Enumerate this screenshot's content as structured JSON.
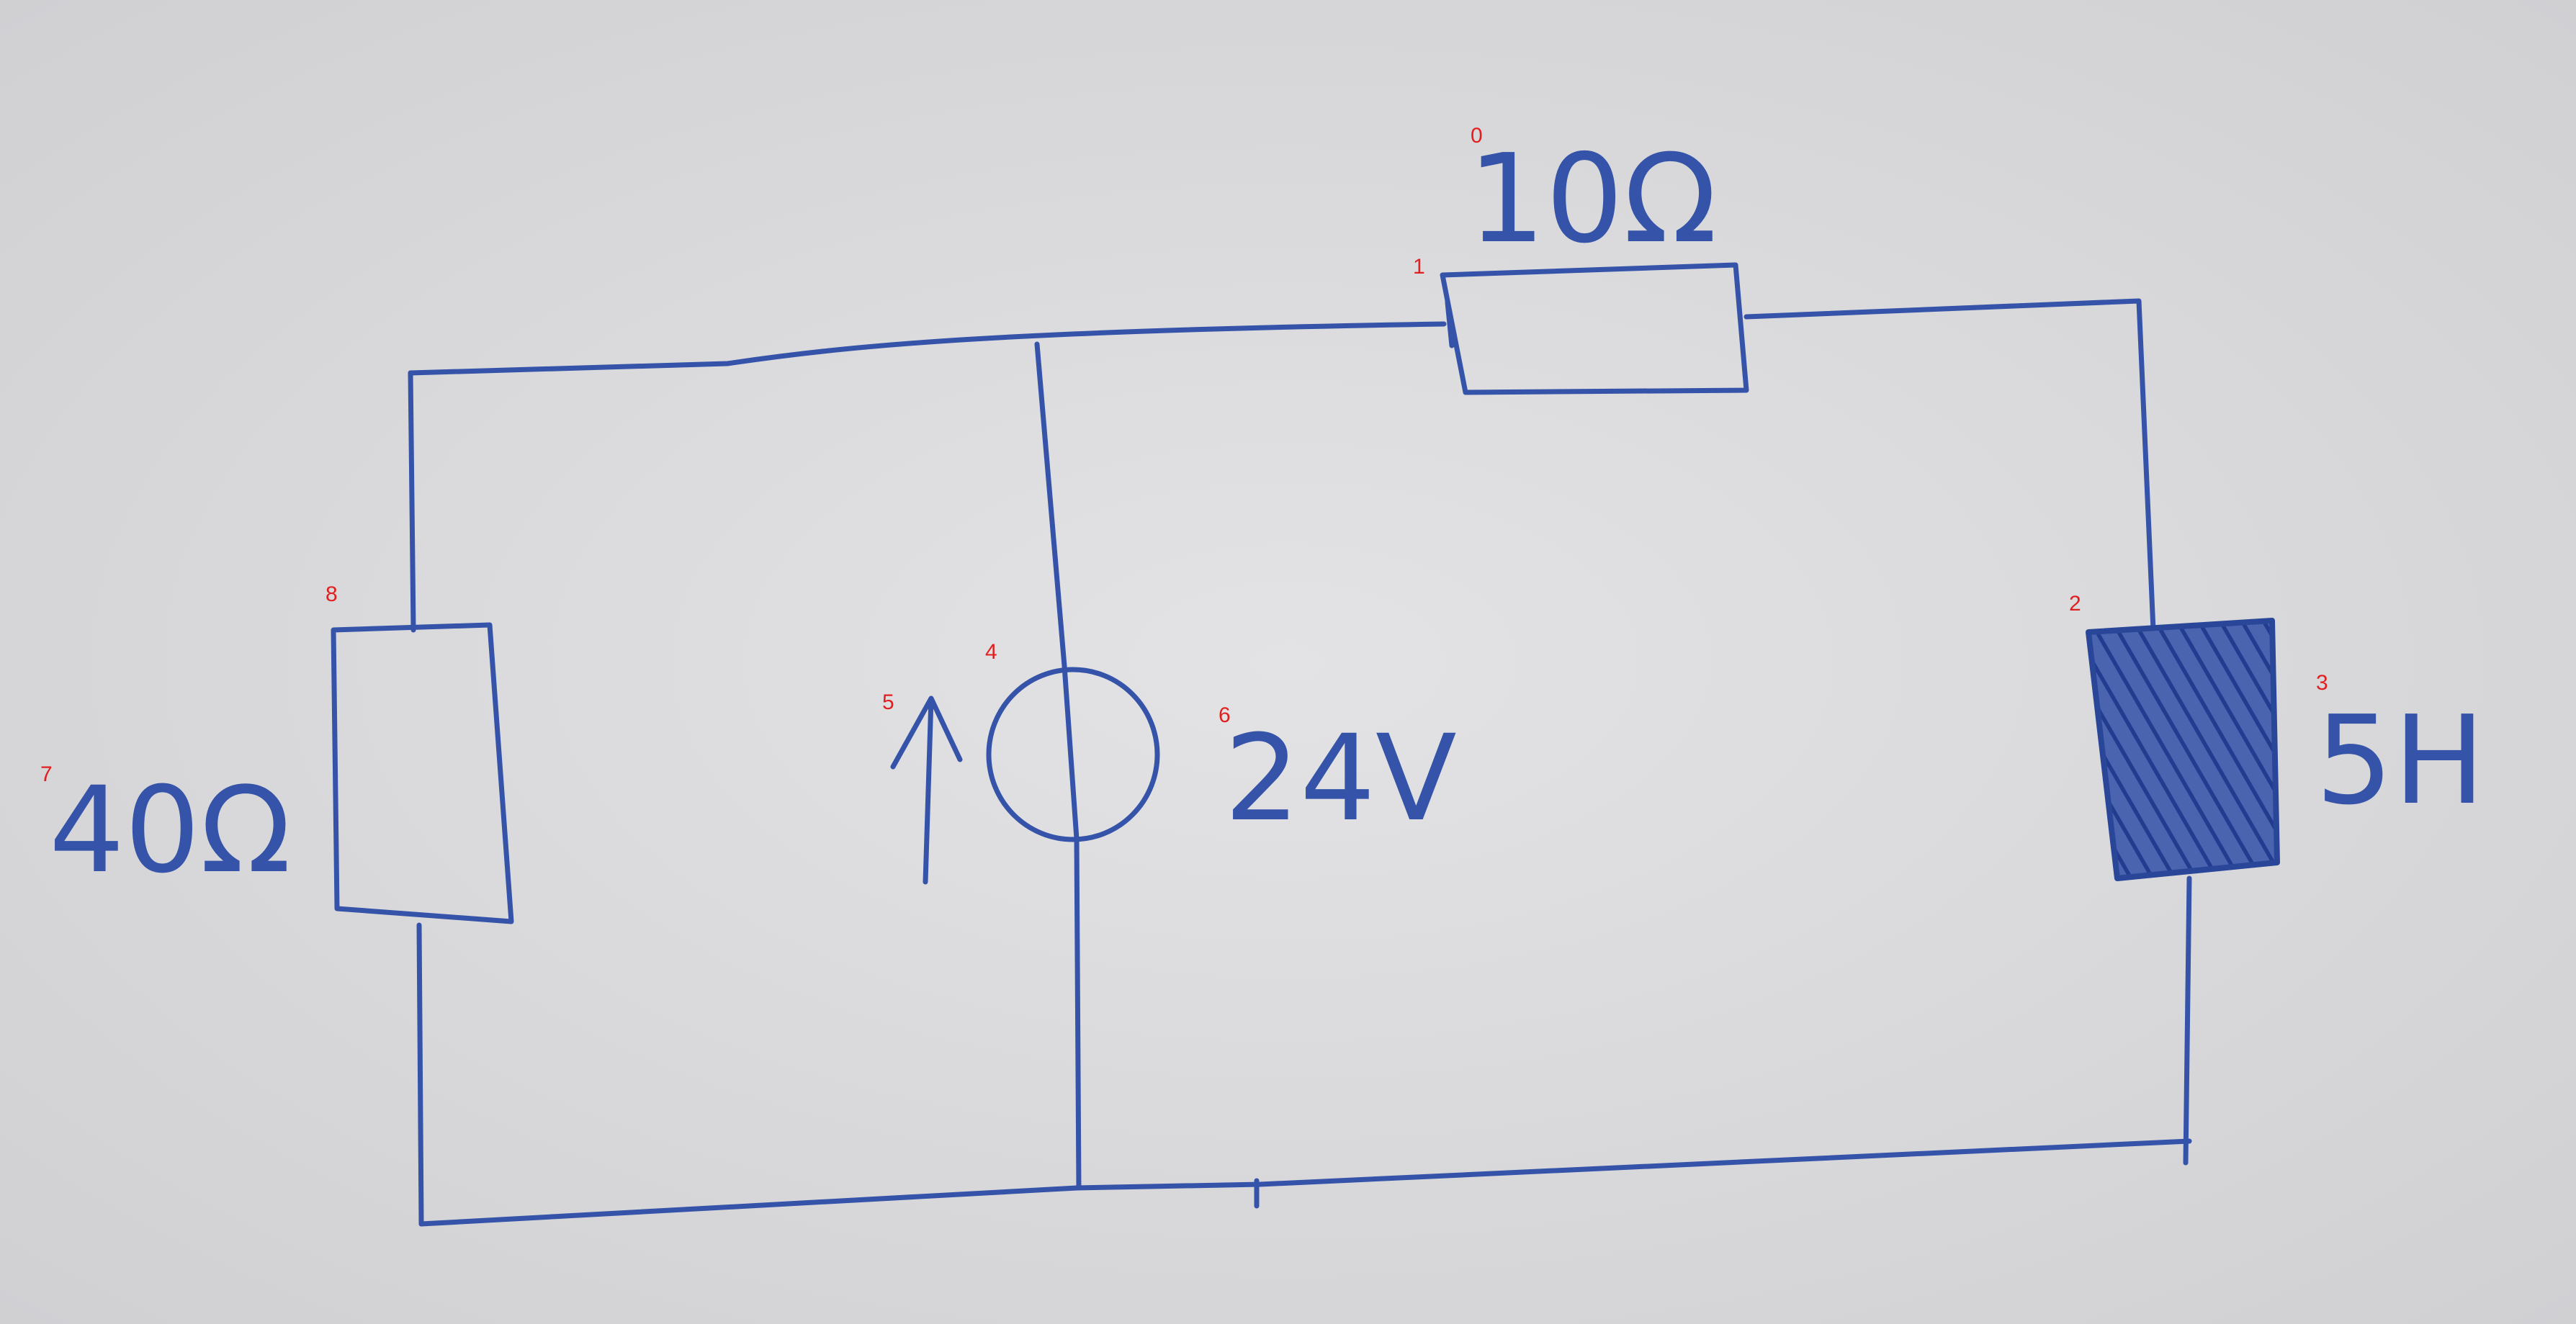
{
  "diagram": {
    "type": "circuit",
    "ink_color": "#3553a8",
    "paper_color": "#d8d8da",
    "marker_color": "#e02020",
    "components": [
      {
        "id": "resistor-top",
        "kind": "resistor",
        "label": "10Ω"
      },
      {
        "id": "inductor-right",
        "kind": "inductor",
        "label": "5H"
      },
      {
        "id": "voltage-source",
        "kind": "voltage-source",
        "label": "24V",
        "direction": "up"
      },
      {
        "id": "resistor-left",
        "kind": "resistor",
        "label": "40Ω"
      }
    ],
    "markers": [
      "0",
      "1",
      "2",
      "3",
      "4",
      "5",
      "6",
      "7",
      "8"
    ]
  }
}
